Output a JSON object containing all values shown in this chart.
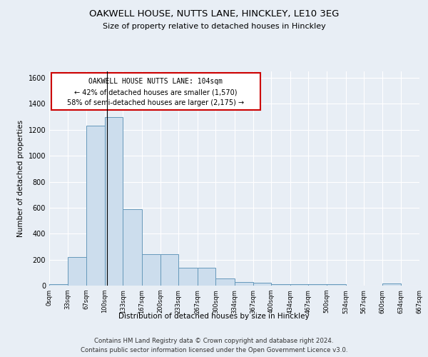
{
  "title": "OAKWELL HOUSE, NUTTS LANE, HINCKLEY, LE10 3EG",
  "subtitle": "Size of property relative to detached houses in Hinckley",
  "xlabel": "Distribution of detached houses by size in Hinckley",
  "ylabel": "Number of detached properties",
  "footer1": "Contains HM Land Registry data © Crown copyright and database right 2024.",
  "footer2": "Contains public sector information licensed under the Open Government Licence v3.0.",
  "annotation_line1": "OAKWELL HOUSE NUTTS LANE: 104sqm",
  "annotation_line2": "← 42% of detached houses are smaller (1,570)",
  "annotation_line3": "58% of semi-detached houses are larger (2,175) →",
  "bar_edges": [
    0,
    33,
    67,
    100,
    133,
    167,
    200,
    233,
    267,
    300,
    334,
    367,
    400,
    434,
    467,
    500,
    534,
    567,
    600,
    634,
    667
  ],
  "bar_heights": [
    10,
    220,
    1230,
    1300,
    590,
    240,
    240,
    140,
    140,
    55,
    25,
    20,
    10,
    10,
    10,
    10,
    0,
    0,
    15,
    0,
    0
  ],
  "bar_color": "#ccdded",
  "bar_edge_color": "#6699bb",
  "property_line_x": 104,
  "ylim": [
    0,
    1650
  ],
  "yticks": [
    0,
    200,
    400,
    600,
    800,
    1000,
    1200,
    1400,
    1600
  ],
  "xtick_labels": [
    "0sqm",
    "33sqm",
    "67sqm",
    "100sqm",
    "133sqm",
    "167sqm",
    "200sqm",
    "233sqm",
    "267sqm",
    "300sqm",
    "334sqm",
    "367sqm",
    "400sqm",
    "434sqm",
    "467sqm",
    "500sqm",
    "534sqm",
    "567sqm",
    "600sqm",
    "634sqm",
    "667sqm"
  ],
  "background_color": "#e8eef5",
  "plot_bg_color": "#e8eef5",
  "grid_color": "#ffffff",
  "annotation_box_color": "#ffffff",
  "annotation_border_color": "#cc0000"
}
